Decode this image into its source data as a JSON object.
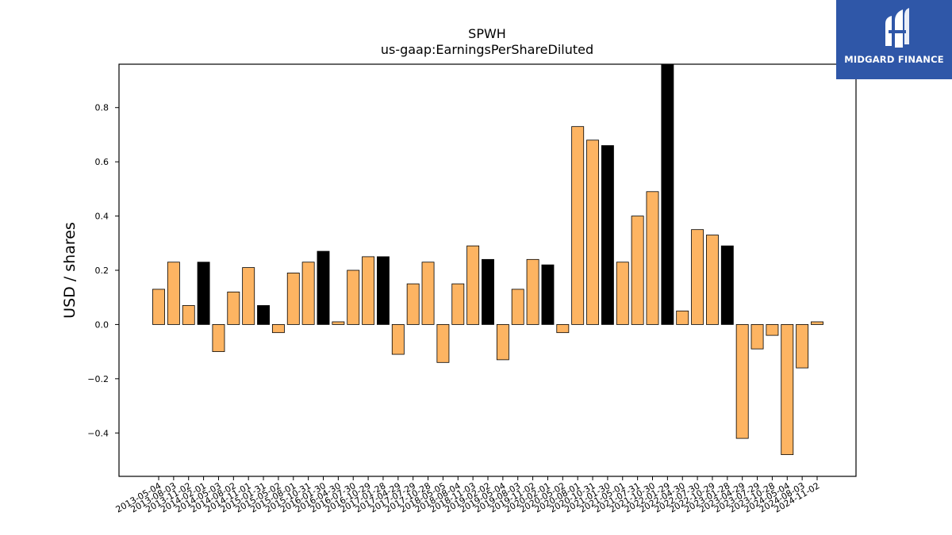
{
  "brand": {
    "name": "MIDGARD FINANCE",
    "bg_color": "#2f57a8"
  },
  "chart_data": {
    "type": "bar",
    "title": "SPWH",
    "subtitle": "us-gaap:EarningsPerShareDiluted",
    "xlabel": "",
    "ylabel": "USD / shares",
    "ylim": [
      -0.56,
      0.96
    ],
    "yticks": [
      -0.4,
      -0.2,
      0.0,
      0.2,
      0.4,
      0.6,
      0.8
    ],
    "grid": false,
    "colors": {
      "quarterly": "#fdb462",
      "annual": "#000000"
    },
    "categories": [
      "2013-05-04",
      "2013-08-03",
      "2013-11-02",
      "2014-02-01",
      "2014-05-03",
      "2014-08-02",
      "2014-11-01",
      "2015-01-31",
      "2015-05-02",
      "2015-08-01",
      "2015-10-31",
      "2016-01-30",
      "2016-04-30",
      "2016-07-30",
      "2016-10-29",
      "2017-01-28",
      "2017-04-29",
      "2017-07-29",
      "2017-10-28",
      "2018-05-05",
      "2018-08-04",
      "2018-11-03",
      "2019-02-02",
      "2019-05-04",
      "2019-08-03",
      "2019-11-02",
      "2020-02-01",
      "2020-05-02",
      "2020-08-01",
      "2020-10-31",
      "2021-01-30",
      "2021-05-01",
      "2021-07-31",
      "2021-10-30",
      "2022-01-29",
      "2022-04-30",
      "2022-07-30",
      "2022-10-29",
      "2023-01-28",
      "2023-04-29",
      "2023-07-29",
      "2023-10-28",
      "2024-05-04",
      "2024-08-03",
      "2024-11-02"
    ],
    "values": [
      0.13,
      0.23,
      0.07,
      0.23,
      -0.1,
      0.12,
      0.21,
      0.07,
      -0.03,
      0.19,
      0.23,
      0.27,
      0.01,
      0.2,
      0.25,
      0.25,
      -0.11,
      0.15,
      0.23,
      -0.14,
      0.15,
      0.29,
      0.24,
      -0.13,
      0.13,
      0.24,
      0.22,
      -0.03,
      0.73,
      0.68,
      0.66,
      0.23,
      0.4,
      0.49,
      0.96,
      0.05,
      0.35,
      0.33,
      0.29,
      -0.42,
      -0.09,
      -0.04,
      -0.48,
      -0.16,
      0.01
    ],
    "bar_type": [
      "q",
      "q",
      "q",
      "a",
      "q",
      "q",
      "q",
      "a",
      "q",
      "q",
      "q",
      "a",
      "q",
      "q",
      "q",
      "a",
      "q",
      "q",
      "q",
      "q",
      "q",
      "q",
      "a",
      "q",
      "q",
      "q",
      "a",
      "q",
      "q",
      "q",
      "a",
      "q",
      "q",
      "q",
      "a",
      "q",
      "q",
      "q",
      "a",
      "q",
      "q",
      "q",
      "q",
      "q",
      "q"
    ]
  }
}
